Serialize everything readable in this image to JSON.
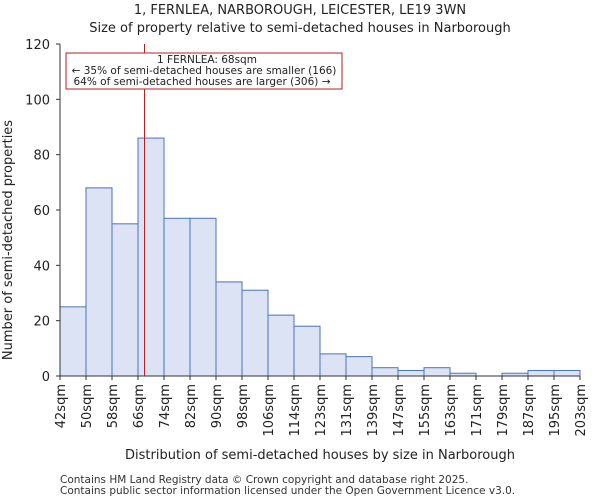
{
  "chart_data": {
    "type": "bar",
    "title_line1": "1, FERNLEA, NARBOROUGH, LEICESTER, LE19 3WN",
    "title_line2": "Size of property relative to semi-detached houses in Narborough",
    "xlabel": "Distribution of semi-detached houses by size in Narborough",
    "ylabel": "Number of semi-detached properties",
    "ylim": [
      0,
      120
    ],
    "yticks": [
      0,
      20,
      40,
      60,
      80,
      100,
      120
    ],
    "xlim": [
      42,
      203
    ],
    "xticks": [
      "42sqm",
      "50sqm",
      "58sqm",
      "66sqm",
      "74sqm",
      "82sqm",
      "90sqm",
      "98sqm",
      "106sqm",
      "114sqm",
      "123sqm",
      "131sqm",
      "139sqm",
      "147sqm",
      "155sqm",
      "163sqm",
      "171sqm",
      "179sqm",
      "187sqm",
      "195sqm",
      "203sqm"
    ],
    "bins": [
      {
        "start": 42,
        "end": 50,
        "value": 25
      },
      {
        "start": 50,
        "end": 58,
        "value": 68
      },
      {
        "start": 58,
        "end": 66,
        "value": 55
      },
      {
        "start": 66,
        "end": 74,
        "value": 86
      },
      {
        "start": 74,
        "end": 82,
        "value": 57
      },
      {
        "start": 82,
        "end": 90,
        "value": 57
      },
      {
        "start": 90,
        "end": 98,
        "value": 34
      },
      {
        "start": 98,
        "end": 106,
        "value": 31
      },
      {
        "start": 106,
        "end": 114,
        "value": 22
      },
      {
        "start": 114,
        "end": 123,
        "value": 18
      },
      {
        "start": 123,
        "end": 131,
        "value": 8
      },
      {
        "start": 131,
        "end": 139,
        "value": 7
      },
      {
        "start": 139,
        "end": 147,
        "value": 3
      },
      {
        "start": 147,
        "end": 155,
        "value": 2
      },
      {
        "start": 155,
        "end": 163,
        "value": 3
      },
      {
        "start": 163,
        "end": 171,
        "value": 1
      },
      {
        "start": 171,
        "end": 179,
        "value": 0
      },
      {
        "start": 179,
        "end": 187,
        "value": 1
      },
      {
        "start": 187,
        "end": 195,
        "value": 2
      },
      {
        "start": 195,
        "end": 203,
        "value": 2
      }
    ],
    "marker": {
      "value": 68,
      "line1": "1 FERNLEA: 68sqm",
      "line2": "← 35% of semi-detached houses are smaller (166)",
      "line3": "64% of semi-detached houses are larger (306) →"
    },
    "colors": {
      "bar_fill": "#dbe3f4",
      "bar_edge": "#4b73b8",
      "marker": "#b22222"
    }
  },
  "footer": {
    "line1": "Contains HM Land Registry data © Crown copyright and database right 2025.",
    "line2": "Contains public sector information licensed under the Open Government Licence v3.0."
  }
}
